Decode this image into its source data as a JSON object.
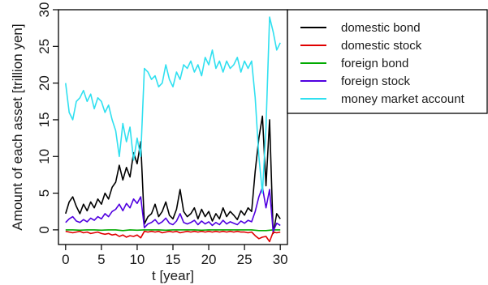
{
  "chart_data": {
    "type": "line",
    "title": "",
    "xlabel": "t [year]",
    "ylabel": "Amount of each asset [trillion yen]",
    "xlim": [
      -1,
      31
    ],
    "ylim": [
      -2,
      30
    ],
    "x_ticks": [
      0,
      5,
      10,
      15,
      20,
      25,
      30
    ],
    "y_ticks": [
      0,
      5,
      10,
      15,
      20,
      25,
      30
    ],
    "x_tick_labels": [
      "0",
      "5",
      "10",
      "15",
      "20",
      "25",
      "30"
    ],
    "y_tick_labels": [
      "0",
      "5",
      "10",
      "15",
      "20",
      "25",
      "30"
    ],
    "grid": false,
    "legend_position": "right",
    "series": [
      {
        "name": "domestic bond",
        "color": "#000000",
        "x": [
          0,
          0.5,
          1,
          1.5,
          2,
          2.5,
          3,
          3.5,
          4,
          4.5,
          5,
          5.5,
          6,
          6.5,
          7,
          7.5,
          8,
          8.5,
          9,
          9.5,
          10,
          10.5,
          11,
          11.5,
          12,
          12.5,
          13,
          13.5,
          14,
          14.5,
          15,
          15.5,
          16,
          16.5,
          17,
          17.5,
          18,
          18.5,
          19,
          19.5,
          20,
          20.5,
          21,
          21.5,
          22,
          22.5,
          23,
          23.5,
          24,
          24.5,
          25,
          25.5,
          26,
          26.5,
          27,
          27.5,
          28,
          28.5,
          29,
          29.5,
          30
        ],
        "values": [
          2.2,
          3.8,
          4.5,
          3.2,
          2.2,
          3.5,
          2.6,
          3.8,
          3.0,
          4.2,
          3.5,
          5.0,
          4.2,
          5.8,
          6.5,
          8.8,
          6.8,
          8.5,
          7.2,
          10.5,
          9.0,
          12.0,
          0.8,
          1.8,
          2.2,
          3.5,
          1.8,
          2.5,
          3.8,
          2.0,
          1.5,
          2.8,
          5.5,
          2.5,
          1.8,
          2.2,
          3.0,
          1.5,
          2.8,
          1.8,
          2.5,
          1.2,
          2.2,
          1.5,
          3.0,
          1.8,
          2.5,
          2.0,
          1.4,
          2.6,
          2.0,
          3.0,
          2.5,
          8.0,
          12.5,
          15.5,
          6.0,
          15.0,
          -0.5,
          2.2,
          1.5
        ]
      },
      {
        "name": "domestic stock",
        "color": "#e00000",
        "x": [
          0,
          0.5,
          1,
          1.5,
          2,
          2.5,
          3,
          3.5,
          4,
          4.5,
          5,
          5.5,
          6,
          6.5,
          7,
          7.5,
          8,
          8.5,
          9,
          9.5,
          10,
          10.5,
          11,
          11.5,
          12,
          12.5,
          13,
          13.5,
          14,
          14.5,
          15,
          15.5,
          16,
          16.5,
          17,
          17.5,
          18,
          18.5,
          19,
          19.5,
          20,
          20.5,
          21,
          21.5,
          22,
          22.5,
          23,
          23.5,
          24,
          24.5,
          25,
          25.5,
          26,
          26.5,
          27,
          27.5,
          28,
          28.5,
          29,
          29.5,
          30
        ],
        "values": [
          -0.2,
          -0.3,
          -0.4,
          -0.3,
          -0.2,
          -0.4,
          -0.3,
          -0.5,
          -0.4,
          -0.3,
          -0.5,
          -0.6,
          -0.5,
          -0.7,
          -0.6,
          -0.9,
          -0.7,
          -1.0,
          -0.8,
          -0.9,
          -0.7,
          -1.1,
          -0.2,
          -0.3,
          -0.2,
          -0.3,
          -0.2,
          -0.4,
          -0.3,
          -0.2,
          -0.3,
          -0.2,
          -0.4,
          -0.3,
          -0.2,
          -0.3,
          -0.2,
          -0.3,
          -0.2,
          -0.3,
          -0.2,
          -0.3,
          -0.2,
          -0.3,
          -0.2,
          -0.3,
          -0.2,
          -0.3,
          -0.2,
          -0.3,
          -0.3,
          -0.4,
          -0.3,
          -0.8,
          -1.2,
          -1.0,
          -0.9,
          -1.6,
          -0.3,
          -0.4,
          -0.3
        ]
      },
      {
        "name": "foreign bond",
        "color": "#00aa00",
        "x": [
          0,
          1,
          2,
          3,
          4,
          5,
          6,
          7,
          8,
          9,
          10,
          11,
          12,
          13,
          14,
          15,
          16,
          17,
          18,
          19,
          20,
          21,
          22,
          23,
          24,
          25,
          26,
          27,
          28,
          29,
          30
        ],
        "values": [
          0.0,
          0.0,
          -0.05,
          0.0,
          0.0,
          -0.05,
          0.0,
          0.0,
          -0.1,
          0.0,
          -0.05,
          0.0,
          0.0,
          0.0,
          -0.05,
          0.0,
          0.0,
          0.0,
          0.0,
          -0.05,
          0.0,
          0.0,
          0.0,
          0.0,
          0.0,
          0.0,
          0.0,
          -0.1,
          -0.1,
          0.0,
          0.0
        ]
      },
      {
        "name": "foreign stock",
        "color": "#5000e0",
        "x": [
          0,
          0.5,
          1,
          1.5,
          2,
          2.5,
          3,
          3.5,
          4,
          4.5,
          5,
          5.5,
          6,
          6.5,
          7,
          7.5,
          8,
          8.5,
          9,
          9.5,
          10,
          10.5,
          11,
          11.5,
          12,
          12.5,
          13,
          13.5,
          14,
          14.5,
          15,
          15.5,
          16,
          16.5,
          17,
          17.5,
          18,
          18.5,
          19,
          19.5,
          20,
          20.5,
          21,
          21.5,
          22,
          22.5,
          23,
          23.5,
          24,
          24.5,
          25,
          25.5,
          26,
          26.5,
          27,
          27.5,
          28,
          28.5,
          29,
          29.5,
          30
        ],
        "values": [
          1.0,
          1.5,
          1.8,
          1.2,
          1.0,
          1.4,
          1.1,
          1.6,
          1.3,
          1.8,
          1.5,
          2.2,
          1.8,
          2.5,
          2.8,
          3.5,
          2.6,
          3.6,
          3.0,
          4.2,
          3.6,
          4.5,
          0.3,
          0.8,
          1.0,
          1.4,
          0.8,
          1.1,
          1.6,
          0.9,
          0.7,
          1.2,
          2.2,
          1.0,
          0.8,
          1.0,
          1.3,
          0.7,
          1.2,
          0.8,
          1.1,
          0.6,
          1.0,
          0.7,
          1.3,
          0.8,
          1.1,
          0.9,
          0.7,
          1.2,
          0.9,
          1.3,
          1.1,
          2.5,
          4.5,
          5.8,
          3.0,
          5.5,
          -0.2,
          0.9,
          0.6
        ]
      },
      {
        "name": "money market account",
        "color": "#30e0f0",
        "x": [
          0,
          0.5,
          1,
          1.5,
          2,
          2.5,
          3,
          3.5,
          4,
          4.5,
          5,
          5.5,
          6,
          6.5,
          7,
          7.5,
          8,
          8.5,
          9,
          9.5,
          10,
          10.5,
          11,
          11.5,
          12,
          12.5,
          13,
          13.5,
          14,
          14.5,
          15,
          15.5,
          16,
          16.5,
          17,
          17.5,
          18,
          18.5,
          19,
          19.5,
          20,
          20.5,
          21,
          21.5,
          22,
          22.5,
          23,
          23.5,
          24,
          24.5,
          25,
          25.5,
          26,
          26.5,
          27,
          27.5,
          28,
          28.5,
          29,
          29.5,
          30
        ],
        "values": [
          20.0,
          16.0,
          15.0,
          17.5,
          18.0,
          19.0,
          17.5,
          18.5,
          16.5,
          18.0,
          17.5,
          16.0,
          17.0,
          15.0,
          13.5,
          10.0,
          14.5,
          12.0,
          14.0,
          9.5,
          12.5,
          10.0,
          22.0,
          21.5,
          20.5,
          21.0,
          19.5,
          20.0,
          22.5,
          20.5,
          19.5,
          21.5,
          20.5,
          22.5,
          22.0,
          23.0,
          21.5,
          22.5,
          21.0,
          23.5,
          22.5,
          24.5,
          22.0,
          23.0,
          21.5,
          23.0,
          22.0,
          22.5,
          23.5,
          21.5,
          23.0,
          22.0,
          23.0,
          18.0,
          10.0,
          5.0,
          14.0,
          29.0,
          27.0,
          24.5,
          25.5
        ]
      }
    ]
  }
}
